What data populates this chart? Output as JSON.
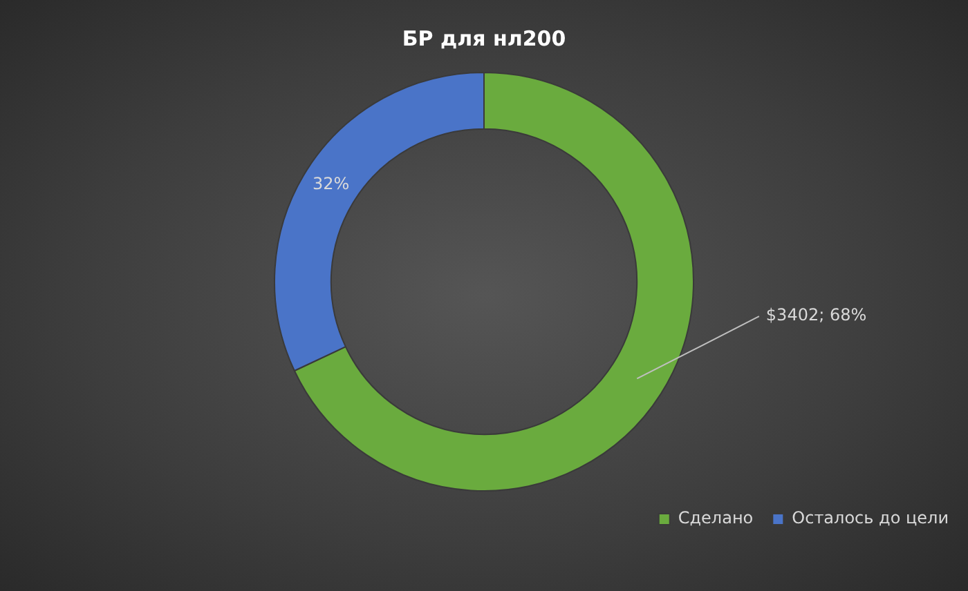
{
  "chart_data": {
    "type": "donut",
    "title": "БР для нл200",
    "categories": [
      "Сделано",
      "Осталось до цели"
    ],
    "values": [
      68,
      32
    ],
    "colors": [
      "#6aab3e",
      "#4a74c8"
    ],
    "value_labels": [
      "$3402; 68%",
      "32%"
    ],
    "legend": "bottom right"
  }
}
